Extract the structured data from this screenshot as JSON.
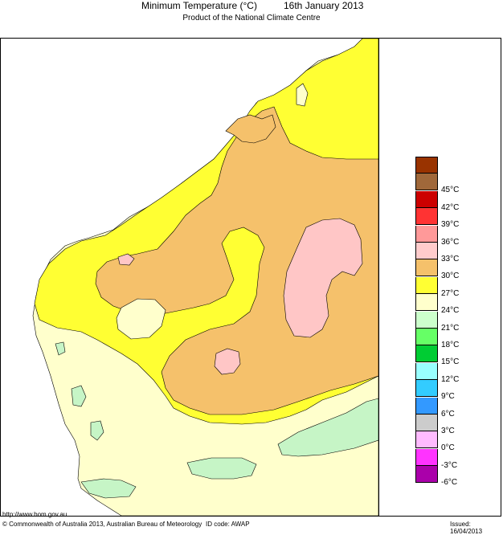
{
  "header": {
    "title": "Minimum Temperature (°C)",
    "date": "16th January 2013",
    "subtitle": "Product of the National Climate Centre"
  },
  "map": {
    "region_colors": {
      "21_to_24": "#ffffcc",
      "24_to_27": "#ffff33",
      "27_to_30": "#f5c16b",
      "30_to_33": "#ffc6c6",
      "18_to_21": "#c6f5c6"
    }
  },
  "legend": {
    "items": [
      {
        "label": "",
        "color": "#993300"
      },
      {
        "label": "45°C",
        "color": "#a0683a"
      },
      {
        "label": "42°C",
        "color": "#cc0000"
      },
      {
        "label": "39°C",
        "color": "#ff3333"
      },
      {
        "label": "36°C",
        "color": "#ff9999"
      },
      {
        "label": "33°C",
        "color": "#ffcccc"
      },
      {
        "label": "30°C",
        "color": "#f5c16b"
      },
      {
        "label": "27°C",
        "color": "#ffff33"
      },
      {
        "label": "24°C",
        "color": "#ffffcc"
      },
      {
        "label": "21°C",
        "color": "#ccffcc"
      },
      {
        "label": "18°C",
        "color": "#66ff66"
      },
      {
        "label": "15°C",
        "color": "#00cc33"
      },
      {
        "label": "12°C",
        "color": "#99ffff"
      },
      {
        "label": "9°C",
        "color": "#33ccff"
      },
      {
        "label": "6°C",
        "color": "#3399ff"
      },
      {
        "label": "3°C",
        "color": "#cccccc"
      },
      {
        "label": "0°C",
        "color": "#ffbbff"
      },
      {
        "label": "-3°C",
        "color": "#ff33ff"
      },
      {
        "label": "-6°C",
        "color": "#aa00aa"
      }
    ]
  },
  "footer": {
    "url": "http://www.bom.gov.au",
    "copyright": "© Commonwealth of Australia 2013, Australian Bureau of Meteorology",
    "id_code": "ID code: AWAP",
    "issued": "Issued: 16/04/2013"
  }
}
